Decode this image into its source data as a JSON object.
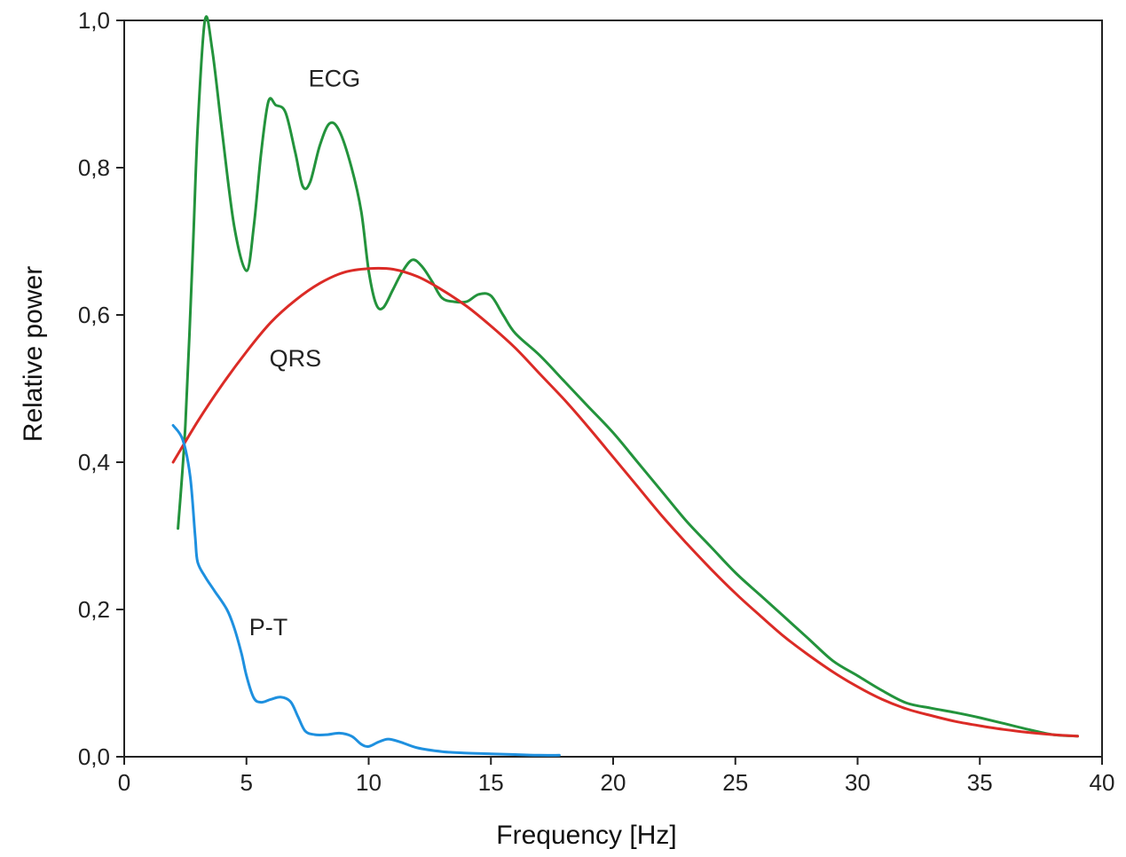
{
  "chart_data": {
    "type": "line",
    "title": "",
    "xlabel": "Frequency [Hz]",
    "ylabel": "Relative power",
    "xlim": [
      0,
      40
    ],
    "ylim": [
      0,
      1.0
    ],
    "xticks": [
      0,
      5,
      10,
      15,
      20,
      25,
      30,
      35,
      40
    ],
    "xtick_labels": [
      "0",
      "5",
      "10",
      "15",
      "20",
      "25",
      "30",
      "35",
      "40"
    ],
    "yticks": [
      0,
      0.2,
      0.4,
      0.6,
      0.8,
      1.0
    ],
    "ytick_labels": [
      "0,0",
      "0,2",
      "0,4",
      "0,6",
      "0,8",
      "1,0"
    ],
    "grid": false,
    "legend": "none",
    "series": [
      {
        "name": "ECG",
        "color": "#23933c",
        "label_at": [
          8.6,
          0.91
        ],
        "points": [
          [
            2.2,
            0.31
          ],
          [
            2.5,
            0.45
          ],
          [
            2.8,
            0.68
          ],
          [
            3.0,
            0.85
          ],
          [
            3.3,
            1.0
          ],
          [
            3.6,
            0.96
          ],
          [
            4.0,
            0.85
          ],
          [
            4.5,
            0.72
          ],
          [
            5.0,
            0.66
          ],
          [
            5.3,
            0.72
          ],
          [
            5.6,
            0.82
          ],
          [
            5.9,
            0.89
          ],
          [
            6.2,
            0.885
          ],
          [
            6.6,
            0.875
          ],
          [
            7.0,
            0.82
          ],
          [
            7.3,
            0.775
          ],
          [
            7.6,
            0.78
          ],
          [
            8.0,
            0.83
          ],
          [
            8.4,
            0.86
          ],
          [
            8.8,
            0.85
          ],
          [
            9.3,
            0.8
          ],
          [
            9.7,
            0.74
          ],
          [
            10.0,
            0.66
          ],
          [
            10.3,
            0.615
          ],
          [
            10.6,
            0.61
          ],
          [
            11.0,
            0.635
          ],
          [
            11.4,
            0.66
          ],
          [
            11.8,
            0.675
          ],
          [
            12.2,
            0.665
          ],
          [
            12.6,
            0.645
          ],
          [
            13.0,
            0.623
          ],
          [
            13.5,
            0.618
          ],
          [
            14.0,
            0.618
          ],
          [
            14.5,
            0.628
          ],
          [
            15.0,
            0.626
          ],
          [
            15.5,
            0.6
          ],
          [
            16.0,
            0.575
          ],
          [
            17.0,
            0.545
          ],
          [
            18.0,
            0.51
          ],
          [
            19.0,
            0.475
          ],
          [
            20.0,
            0.44
          ],
          [
            21.0,
            0.4
          ],
          [
            22.0,
            0.36
          ],
          [
            23.0,
            0.32
          ],
          [
            24.0,
            0.285
          ],
          [
            25.0,
            0.25
          ],
          [
            26.0,
            0.22
          ],
          [
            27.0,
            0.19
          ],
          [
            28.0,
            0.16
          ],
          [
            29.0,
            0.13
          ],
          [
            30.0,
            0.11
          ],
          [
            31.0,
            0.09
          ],
          [
            32.0,
            0.073
          ],
          [
            33.0,
            0.066
          ],
          [
            34.0,
            0.06
          ],
          [
            35.0,
            0.053
          ],
          [
            36.0,
            0.045
          ],
          [
            37.0,
            0.037
          ],
          [
            38.0,
            0.03
          ],
          [
            39.0,
            0.028
          ]
        ]
      },
      {
        "name": "QRS",
        "color": "#db2b26",
        "label_at": [
          7.0,
          0.53
        ],
        "points": [
          [
            2.0,
            0.4
          ],
          [
            3.0,
            0.455
          ],
          [
            4.0,
            0.505
          ],
          [
            5.0,
            0.55
          ],
          [
            6.0,
            0.59
          ],
          [
            7.0,
            0.62
          ],
          [
            8.0,
            0.643
          ],
          [
            9.0,
            0.658
          ],
          [
            10.0,
            0.663
          ],
          [
            11.0,
            0.662
          ],
          [
            12.0,
            0.652
          ],
          [
            13.0,
            0.634
          ],
          [
            14.0,
            0.612
          ],
          [
            15.0,
            0.585
          ],
          [
            16.0,
            0.555
          ],
          [
            17.0,
            0.52
          ],
          [
            18.0,
            0.485
          ],
          [
            19.0,
            0.447
          ],
          [
            20.0,
            0.407
          ],
          [
            21.0,
            0.367
          ],
          [
            22.0,
            0.327
          ],
          [
            23.0,
            0.29
          ],
          [
            24.0,
            0.255
          ],
          [
            25.0,
            0.222
          ],
          [
            26.0,
            0.192
          ],
          [
            27.0,
            0.163
          ],
          [
            28.0,
            0.138
          ],
          [
            29.0,
            0.115
          ],
          [
            30.0,
            0.095
          ],
          [
            31.0,
            0.078
          ],
          [
            32.0,
            0.065
          ],
          [
            33.0,
            0.056
          ],
          [
            34.0,
            0.048
          ],
          [
            35.0,
            0.042
          ],
          [
            36.0,
            0.037
          ],
          [
            37.0,
            0.033
          ],
          [
            38.0,
            0.03
          ],
          [
            39.0,
            0.028
          ]
        ]
      },
      {
        "name": "P-T",
        "color": "#1e90df",
        "label_at": [
          5.9,
          0.165
        ],
        "points": [
          [
            2.0,
            0.45
          ],
          [
            2.4,
            0.43
          ],
          [
            2.7,
            0.38
          ],
          [
            2.9,
            0.3
          ],
          [
            3.0,
            0.265
          ],
          [
            3.3,
            0.245
          ],
          [
            3.7,
            0.225
          ],
          [
            4.2,
            0.2
          ],
          [
            4.5,
            0.175
          ],
          [
            4.8,
            0.14
          ],
          [
            5.0,
            0.11
          ],
          [
            5.3,
            0.08
          ],
          [
            5.6,
            0.074
          ],
          [
            6.0,
            0.078
          ],
          [
            6.4,
            0.081
          ],
          [
            6.8,
            0.075
          ],
          [
            7.1,
            0.055
          ],
          [
            7.4,
            0.035
          ],
          [
            7.8,
            0.03
          ],
          [
            8.3,
            0.03
          ],
          [
            8.8,
            0.032
          ],
          [
            9.3,
            0.028
          ],
          [
            9.7,
            0.017
          ],
          [
            10.0,
            0.014
          ],
          [
            10.4,
            0.02
          ],
          [
            10.8,
            0.024
          ],
          [
            11.3,
            0.02
          ],
          [
            12.0,
            0.012
          ],
          [
            13.0,
            0.007
          ],
          [
            14.0,
            0.005
          ],
          [
            15.0,
            0.004
          ],
          [
            16.0,
            0.003
          ],
          [
            17.0,
            0.002
          ],
          [
            17.8,
            0.002
          ]
        ]
      }
    ]
  }
}
